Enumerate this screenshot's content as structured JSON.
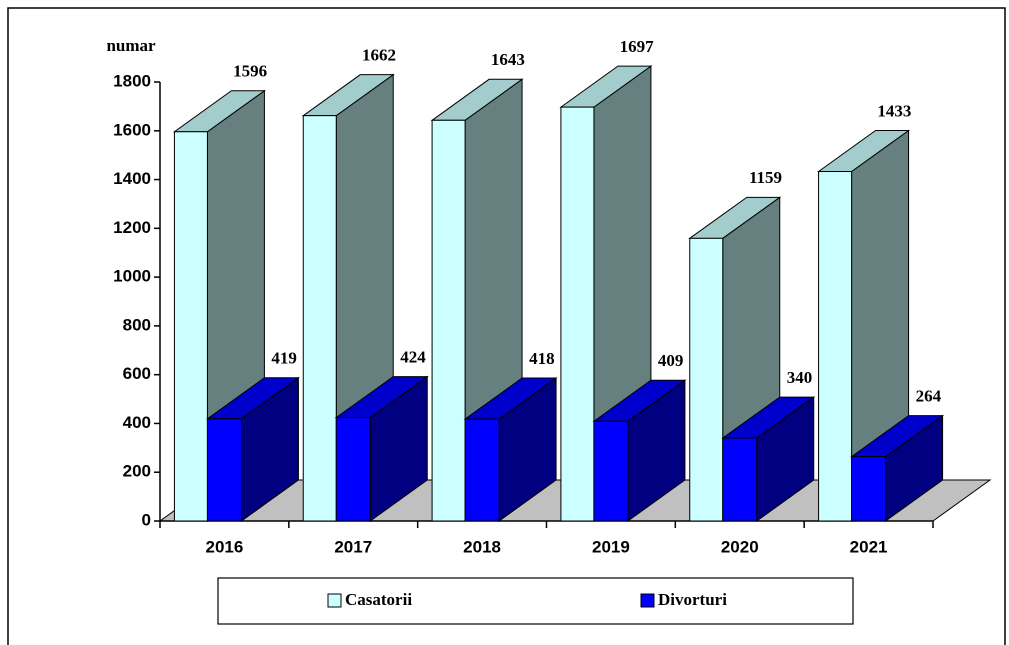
{
  "chart_data": {
    "type": "bar3d",
    "y_label": "numar",
    "categories": [
      "2016",
      "2017",
      "2018",
      "2019",
      "2020",
      "2021"
    ],
    "series": [
      {
        "name": "Casatorii",
        "color": "#ccffff",
        "values": [
          1596,
          1662,
          1643,
          1697,
          1159,
          1433
        ]
      },
      {
        "name": "Divorturi",
        "color": "#0000ff",
        "values": [
          419,
          424,
          418,
          409,
          340,
          264
        ]
      }
    ],
    "ylim": [
      0,
      1800
    ],
    "yticks": [
      0,
      200,
      400,
      600,
      800,
      1000,
      1200,
      1400,
      1600,
      1800
    ]
  }
}
